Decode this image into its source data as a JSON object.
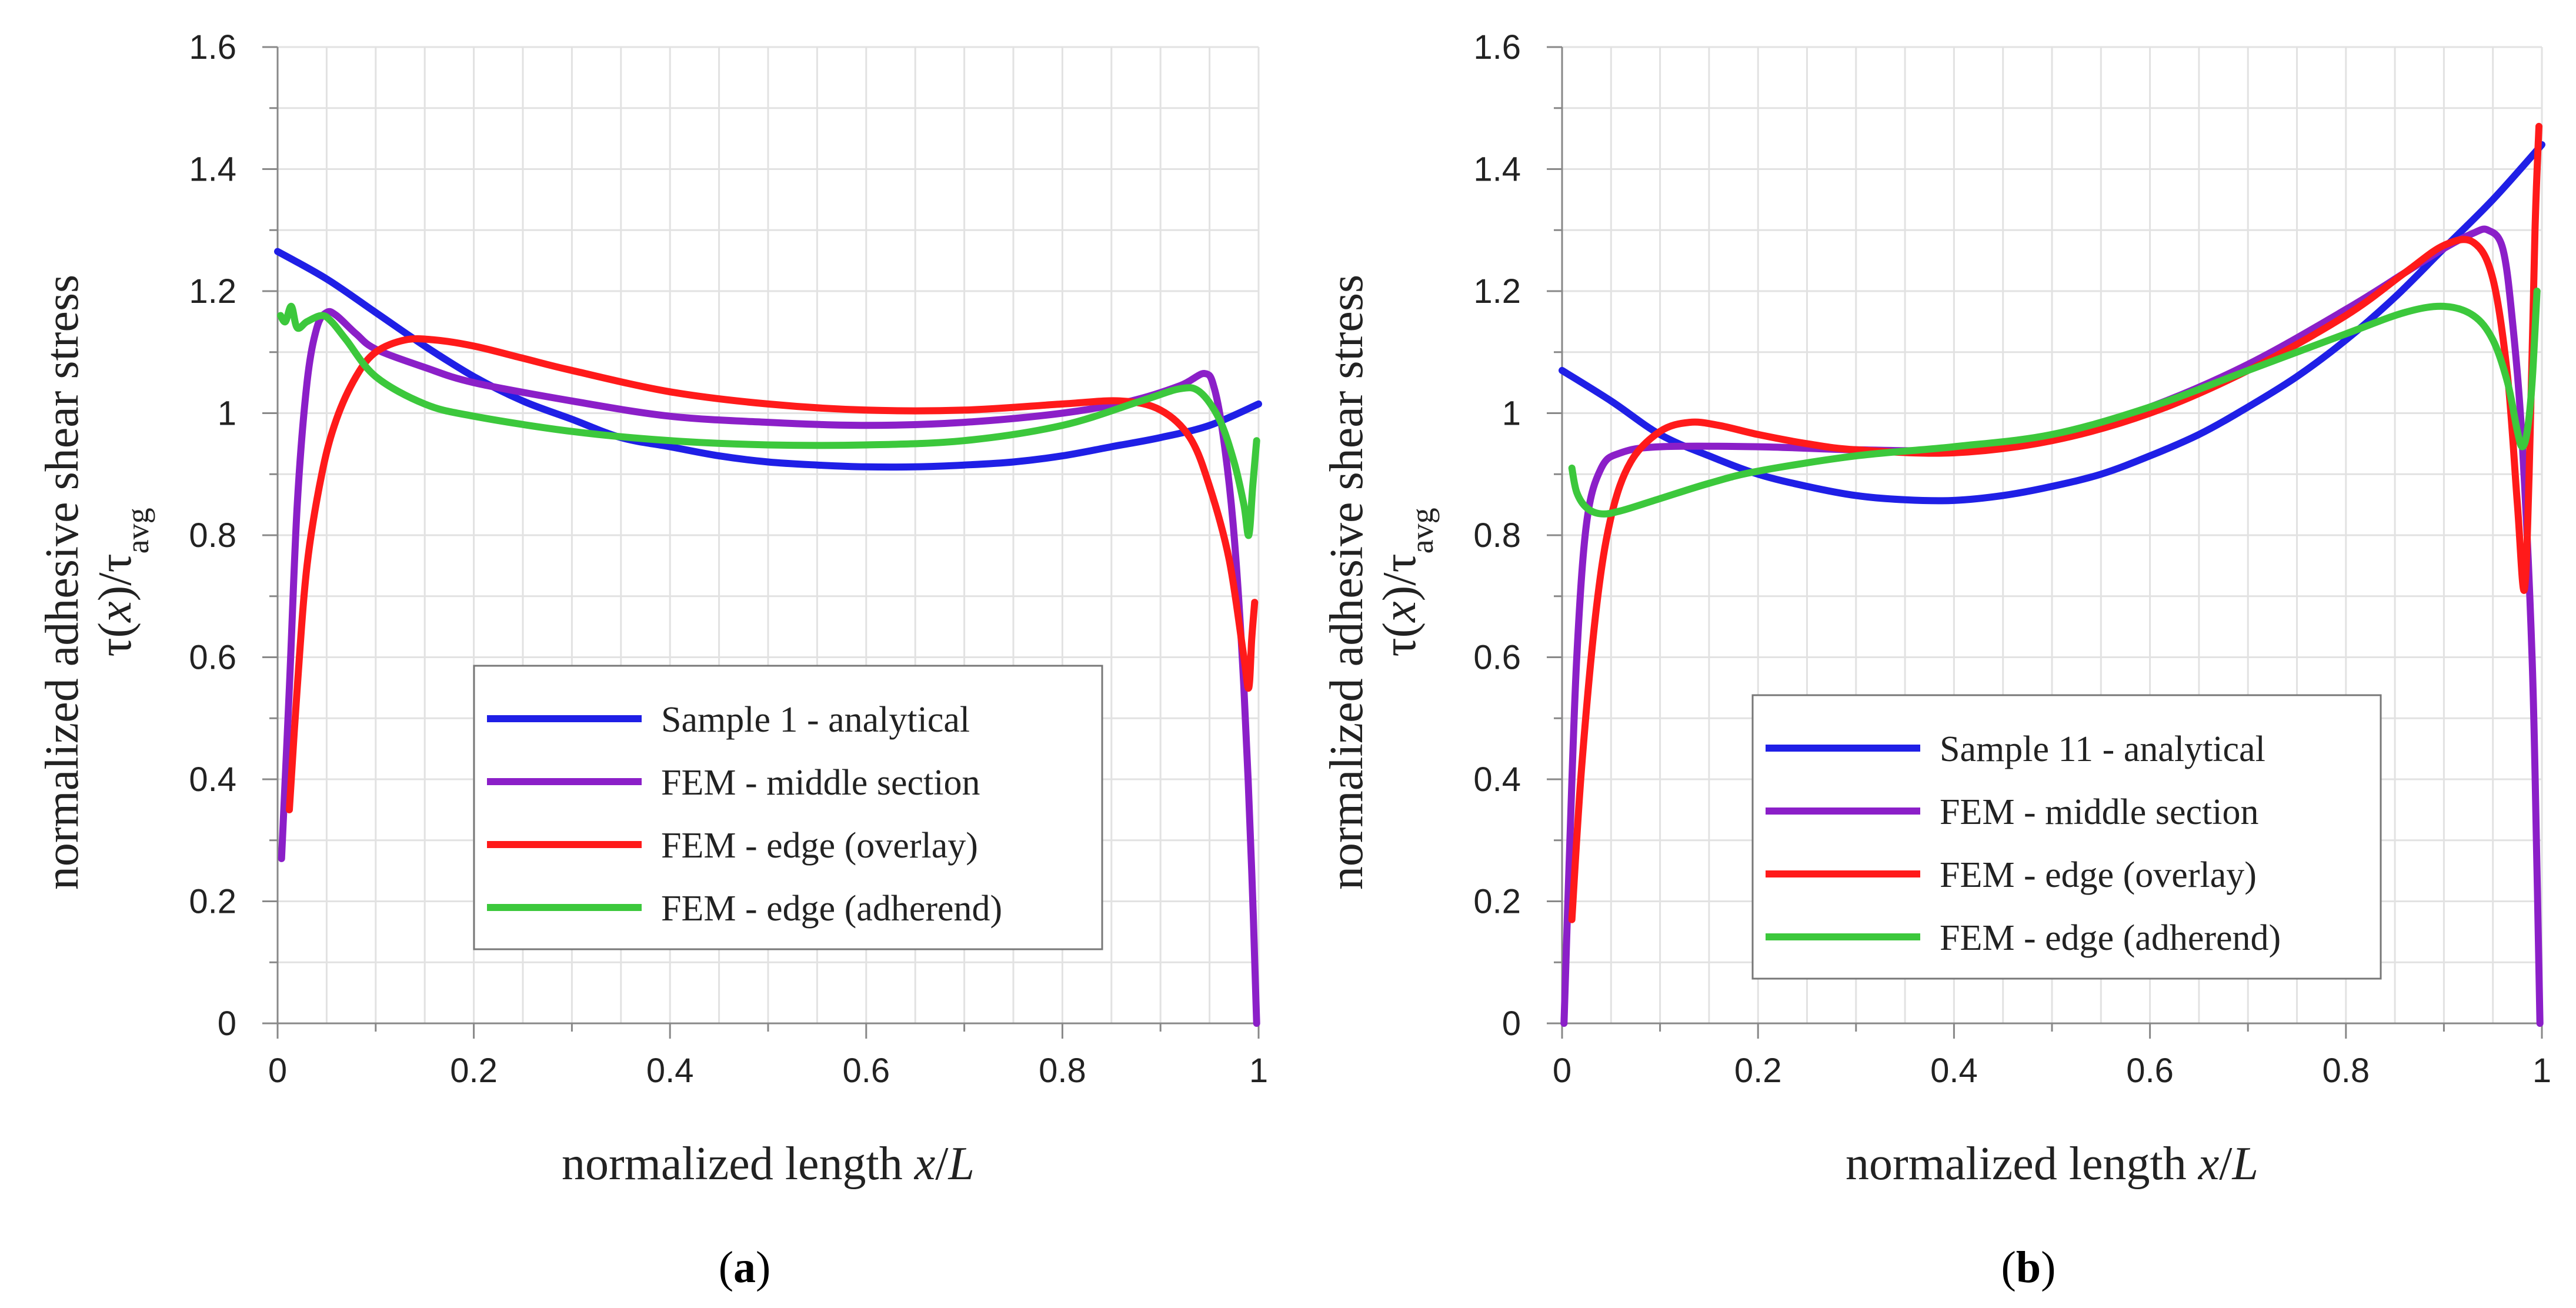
{
  "chart_data": [
    {
      "type": "line",
      "panel_label": "a",
      "xlabel": {
        "main": "normalized length ",
        "var": "x",
        "slash": "/",
        "len": "L"
      },
      "ylabel": {
        "line1": "normalized adhesive shear stress",
        "tau_x": "τ(",
        "x": "x",
        "close": ")/τ",
        "sub": "avg"
      },
      "xlim": [
        0,
        1
      ],
      "ylim": [
        0,
        1.6
      ],
      "xticks": [
        "0",
        "0.2",
        "0.4",
        "0.6",
        "0.8",
        "1"
      ],
      "yticks": [
        "0",
        "0.2",
        "0.4",
        "0.6",
        "0.8",
        "1",
        "1.2",
        "1.4",
        "1.6"
      ],
      "legend_position": "lower-center",
      "series": [
        {
          "name": "Sample 1 - analytical",
          "color": "#1f1fe6",
          "points": [
            [
              0,
              1.265
            ],
            [
              0.05,
              1.22
            ],
            [
              0.1,
              1.165
            ],
            [
              0.15,
              1.11
            ],
            [
              0.2,
              1.06
            ],
            [
              0.25,
              1.02
            ],
            [
              0.3,
              0.99
            ],
            [
              0.35,
              0.96
            ],
            [
              0.4,
              0.945
            ],
            [
              0.45,
              0.93
            ],
            [
              0.5,
              0.92
            ],
            [
              0.55,
              0.915
            ],
            [
              0.6,
              0.912
            ],
            [
              0.65,
              0.912
            ],
            [
              0.7,
              0.915
            ],
            [
              0.75,
              0.92
            ],
            [
              0.8,
              0.93
            ],
            [
              0.85,
              0.945
            ],
            [
              0.9,
              0.96
            ],
            [
              0.95,
              0.98
            ],
            [
              1,
              1.015
            ]
          ]
        },
        {
          "name": "FEM - middle section",
          "color": "#8b1fc8",
          "points": [
            [
              0.004,
              0.27
            ],
            [
              0.012,
              0.55
            ],
            [
              0.02,
              0.85
            ],
            [
              0.03,
              1.05
            ],
            [
              0.04,
              1.14
            ],
            [
              0.05,
              1.165
            ],
            [
              0.06,
              1.16
            ],
            [
              0.08,
              1.13
            ],
            [
              0.1,
              1.105
            ],
            [
              0.15,
              1.075
            ],
            [
              0.2,
              1.05
            ],
            [
              0.3,
              1.02
            ],
            [
              0.4,
              0.995
            ],
            [
              0.5,
              0.985
            ],
            [
              0.6,
              0.98
            ],
            [
              0.7,
              0.985
            ],
            [
              0.8,
              1.0
            ],
            [
              0.87,
              1.02
            ],
            [
              0.92,
              1.045
            ],
            [
              0.945,
              1.065
            ],
            [
              0.955,
              1.04
            ],
            [
              0.965,
              0.95
            ],
            [
              0.975,
              0.8
            ],
            [
              0.985,
              0.55
            ],
            [
              0.993,
              0.25
            ],
            [
              0.998,
              0.0
            ]
          ]
        },
        {
          "name": "FEM - edge (overlay)",
          "color": "#ff1a1a",
          "points": [
            [
              0.012,
              0.35
            ],
            [
              0.02,
              0.55
            ],
            [
              0.03,
              0.75
            ],
            [
              0.045,
              0.9
            ],
            [
              0.06,
              0.99
            ],
            [
              0.08,
              1.06
            ],
            [
              0.1,
              1.1
            ],
            [
              0.13,
              1.12
            ],
            [
              0.16,
              1.12
            ],
            [
              0.2,
              1.11
            ],
            [
              0.25,
              1.09
            ],
            [
              0.3,
              1.07
            ],
            [
              0.4,
              1.035
            ],
            [
              0.5,
              1.015
            ],
            [
              0.6,
              1.005
            ],
            [
              0.7,
              1.005
            ],
            [
              0.8,
              1.015
            ],
            [
              0.86,
              1.02
            ],
            [
              0.9,
              1.005
            ],
            [
              0.93,
              0.96
            ],
            [
              0.95,
              0.88
            ],
            [
              0.97,
              0.76
            ],
            [
              0.985,
              0.6
            ],
            [
              0.99,
              0.55
            ],
            [
              0.993,
              0.63
            ],
            [
              0.996,
              0.69
            ]
          ]
        },
        {
          "name": "FEM - edge (adherend)",
          "color": "#3cc83c",
          "points": [
            [
              0.003,
              1.16
            ],
            [
              0.008,
              1.15
            ],
            [
              0.014,
              1.175
            ],
            [
              0.02,
              1.14
            ],
            [
              0.03,
              1.15
            ],
            [
              0.045,
              1.16
            ],
            [
              0.055,
              1.15
            ],
            [
              0.07,
              1.12
            ],
            [
              0.1,
              1.06
            ],
            [
              0.15,
              1.015
            ],
            [
              0.2,
              0.995
            ],
            [
              0.3,
              0.97
            ],
            [
              0.4,
              0.955
            ],
            [
              0.5,
              0.948
            ],
            [
              0.6,
              0.948
            ],
            [
              0.7,
              0.955
            ],
            [
              0.8,
              0.98
            ],
            [
              0.88,
              1.02
            ],
            [
              0.92,
              1.04
            ],
            [
              0.94,
              1.035
            ],
            [
              0.96,
              0.99
            ],
            [
              0.975,
              0.92
            ],
            [
              0.985,
              0.85
            ],
            [
              0.99,
              0.8
            ],
            [
              0.994,
              0.88
            ],
            [
              0.998,
              0.955
            ]
          ]
        }
      ]
    },
    {
      "type": "line",
      "panel_label": "b",
      "xlabel": {
        "main": "normalized length ",
        "var": "x",
        "slash": "/",
        "len": "L"
      },
      "ylabel": {
        "line1": "normalized adhesive shear stress",
        "tau_x": "τ(",
        "x": "x",
        "close": ")/τ",
        "sub": "avg"
      },
      "xlim": [
        0,
        1
      ],
      "ylim": [
        0,
        1.6
      ],
      "xticks": [
        "0",
        "0.2",
        "0.4",
        "0.6",
        "0.8",
        "1"
      ],
      "yticks": [
        "0",
        "0.2",
        "0.4",
        "0.6",
        "0.8",
        "1",
        "1.2",
        "1.4",
        "1.6"
      ],
      "legend_position": "lower-center",
      "series": [
        {
          "name": "Sample 11 -  analytical",
          "color": "#1f1fe6",
          "points": [
            [
              0,
              1.07
            ],
            [
              0.05,
              1.02
            ],
            [
              0.1,
              0.965
            ],
            [
              0.15,
              0.93
            ],
            [
              0.2,
              0.9
            ],
            [
              0.25,
              0.88
            ],
            [
              0.3,
              0.865
            ],
            [
              0.35,
              0.858
            ],
            [
              0.4,
              0.857
            ],
            [
              0.45,
              0.865
            ],
            [
              0.5,
              0.88
            ],
            [
              0.55,
              0.9
            ],
            [
              0.6,
              0.93
            ],
            [
              0.65,
              0.965
            ],
            [
              0.7,
              1.01
            ],
            [
              0.75,
              1.06
            ],
            [
              0.8,
              1.12
            ],
            [
              0.85,
              1.19
            ],
            [
              0.9,
              1.27
            ],
            [
              0.95,
              1.35
            ],
            [
              1,
              1.44
            ]
          ]
        },
        {
          "name": "FEM - middle section",
          "color": "#8b1fc8",
          "points": [
            [
              0.002,
              0.0
            ],
            [
              0.008,
              0.3
            ],
            [
              0.015,
              0.6
            ],
            [
              0.025,
              0.82
            ],
            [
              0.04,
              0.91
            ],
            [
              0.06,
              0.935
            ],
            [
              0.1,
              0.945
            ],
            [
              0.2,
              0.945
            ],
            [
              0.3,
              0.94
            ],
            [
              0.4,
              0.94
            ],
            [
              0.5,
              0.96
            ],
            [
              0.6,
              1.01
            ],
            [
              0.7,
              1.08
            ],
            [
              0.8,
              1.17
            ],
            [
              0.86,
              1.23
            ],
            [
              0.9,
              1.27
            ],
            [
              0.93,
              1.295
            ],
            [
              0.945,
              1.3
            ],
            [
              0.96,
              1.27
            ],
            [
              0.97,
              1.15
            ],
            [
              0.98,
              0.95
            ],
            [
              0.99,
              0.6
            ],
            [
              0.995,
              0.25
            ],
            [
              0.998,
              0.0
            ]
          ]
        },
        {
          "name": "FEM - edge (overlay)",
          "color": "#ff1a1a",
          "points": [
            [
              0.01,
              0.17
            ],
            [
              0.02,
              0.42
            ],
            [
              0.035,
              0.68
            ],
            [
              0.05,
              0.83
            ],
            [
              0.07,
              0.92
            ],
            [
              0.1,
              0.97
            ],
            [
              0.13,
              0.985
            ],
            [
              0.16,
              0.98
            ],
            [
              0.2,
              0.965
            ],
            [
              0.25,
              0.95
            ],
            [
              0.3,
              0.94
            ],
            [
              0.4,
              0.935
            ],
            [
              0.5,
              0.955
            ],
            [
              0.6,
              1.0
            ],
            [
              0.7,
              1.07
            ],
            [
              0.8,
              1.16
            ],
            [
              0.86,
              1.23
            ],
            [
              0.9,
              1.275
            ],
            [
              0.93,
              1.28
            ],
            [
              0.95,
              1.22
            ],
            [
              0.965,
              1.06
            ],
            [
              0.975,
              0.85
            ],
            [
              0.982,
              0.71
            ],
            [
              0.987,
              0.9
            ],
            [
              0.993,
              1.3
            ],
            [
              0.997,
              1.47
            ]
          ]
        },
        {
          "name": "FEM - edge (adherend)",
          "color": "#3cc83c",
          "points": [
            [
              0.01,
              0.91
            ],
            [
              0.015,
              0.87
            ],
            [
              0.025,
              0.845
            ],
            [
              0.04,
              0.835
            ],
            [
              0.06,
              0.84
            ],
            [
              0.1,
              0.86
            ],
            [
              0.15,
              0.885
            ],
            [
              0.2,
              0.905
            ],
            [
              0.3,
              0.93
            ],
            [
              0.4,
              0.945
            ],
            [
              0.5,
              0.965
            ],
            [
              0.6,
              1.01
            ],
            [
              0.7,
              1.07
            ],
            [
              0.8,
              1.13
            ],
            [
              0.86,
              1.165
            ],
            [
              0.9,
              1.175
            ],
            [
              0.93,
              1.16
            ],
            [
              0.95,
              1.12
            ],
            [
              0.965,
              1.05
            ],
            [
              0.975,
              0.97
            ],
            [
              0.98,
              0.945
            ],
            [
              0.985,
              0.97
            ],
            [
              0.99,
              1.05
            ],
            [
              0.995,
              1.2
            ]
          ]
        }
      ]
    }
  ]
}
